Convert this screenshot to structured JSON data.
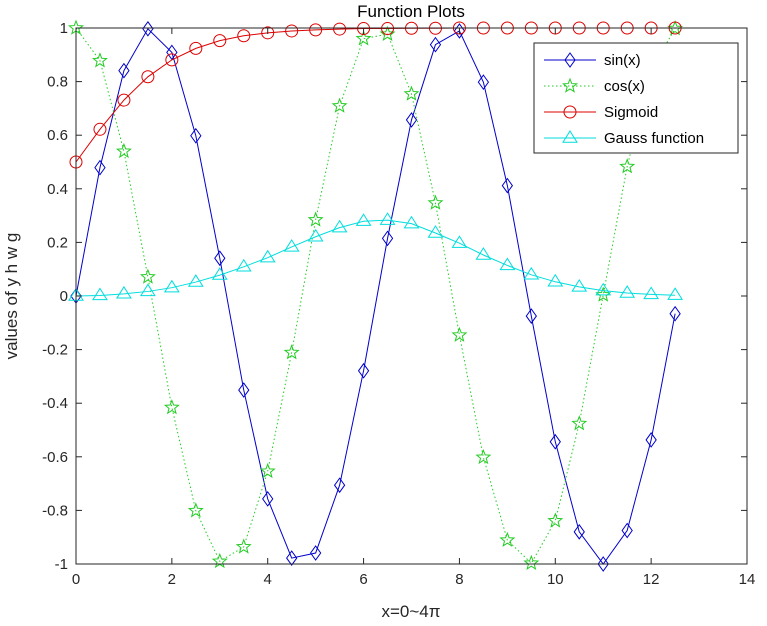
{
  "chart_data": {
    "type": "line",
    "title": "Function Plots",
    "xlabel": "x=0~4π",
    "ylabel": "values of y h w g",
    "xlim": [
      0,
      14
    ],
    "ylim": [
      -1,
      1
    ],
    "xticks": [
      0,
      2,
      4,
      6,
      8,
      10,
      12,
      14
    ],
    "yticks": [
      -1,
      -0.8,
      -0.6,
      -0.4,
      -0.2,
      0,
      0.2,
      0.4,
      0.6,
      0.8,
      1
    ],
    "x": [
      0,
      0.5,
      1,
      1.5,
      2,
      2.5,
      3,
      3.5,
      4,
      4.5,
      5,
      5.5,
      6,
      6.5,
      7,
      7.5,
      8,
      8.5,
      9,
      9.5,
      10,
      10.5,
      11,
      11.5,
      12,
      12.5
    ],
    "series": [
      {
        "name": "sin(x)",
        "color": "#0000cc",
        "line": "solid",
        "marker": "diamond",
        "values": [
          0,
          0.479,
          0.841,
          0.997,
          0.909,
          0.598,
          0.141,
          -0.351,
          -0.757,
          -0.978,
          -0.959,
          -0.706,
          -0.279,
          0.215,
          0.657,
          0.938,
          0.989,
          0.798,
          0.412,
          -0.075,
          -0.544,
          -0.88,
          -1.0,
          -0.875,
          -0.537,
          -0.066
        ]
      },
      {
        "name": "cos(x)",
        "color": "#22cc22",
        "line": "dotted",
        "marker": "star",
        "values": [
          1,
          0.878,
          0.54,
          0.071,
          -0.416,
          -0.801,
          -0.99,
          -0.936,
          -0.654,
          -0.211,
          0.284,
          0.709,
          0.96,
          0.977,
          0.754,
          0.347,
          -0.146,
          -0.602,
          -0.911,
          -0.997,
          -0.839,
          -0.476,
          0.004,
          0.483,
          0.844,
          0.998
        ]
      },
      {
        "name": "Sigmoid",
        "color": "#dd0000",
        "line": "solid",
        "marker": "circle",
        "values": [
          0.5,
          0.622,
          0.731,
          0.818,
          0.881,
          0.924,
          0.953,
          0.971,
          0.982,
          0.989,
          0.993,
          0.996,
          0.998,
          0.998,
          0.999,
          0.999,
          1.0,
          1.0,
          1.0,
          1.0,
          1.0,
          1.0,
          1.0,
          1.0,
          1.0,
          1.0
        ]
      },
      {
        "name": "Gauss function",
        "color": "#00dddd",
        "line": "solid",
        "marker": "triangle",
        "values": [
          0.0,
          0.002,
          0.008,
          0.017,
          0.031,
          0.052,
          0.078,
          0.109,
          0.143,
          0.183,
          0.221,
          0.255,
          0.279,
          0.283,
          0.27,
          0.235,
          0.197,
          0.153,
          0.114,
          0.079,
          0.053,
          0.034,
          0.02,
          0.011,
          0.006,
          0.003
        ]
      }
    ],
    "legend": "top-right"
  }
}
